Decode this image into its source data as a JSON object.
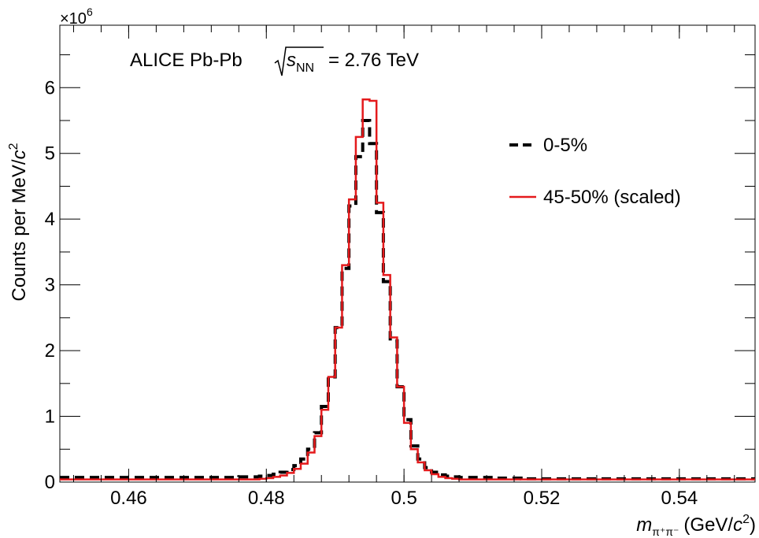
{
  "chart_data": {
    "type": "histogram-step",
    "title": "",
    "annotation": {
      "prefix": "ALICE Pb-Pb",
      "sqrt_var": "s",
      "sqrt_sub": "NN",
      "suffix": "= 2.76 TeV"
    },
    "xlabel": {
      "var": "m",
      "sub": "π⁺π⁻",
      "unit_prefix": "(GeV/",
      "unit_c": "c",
      "unit_exp": "2",
      "unit_suffix": ")"
    },
    "ylabel": {
      "text": "Counts per MeV/",
      "c": "c",
      "exp": "2"
    },
    "y_multiplier": {
      "base": "×10",
      "exp": "6"
    },
    "xlim": [
      0.45,
      0.551
    ],
    "ylim": [
      0,
      6.95
    ],
    "x_ticks": [
      0.46,
      0.48,
      0.5,
      0.52,
      0.54
    ],
    "x_tick_labels": [
      "0.46",
      "0.48",
      "0.5",
      "0.52",
      "0.54"
    ],
    "y_ticks": [
      0,
      1,
      2,
      3,
      4,
      5,
      6
    ],
    "y_tick_labels": [
      "0",
      "1",
      "2",
      "3",
      "4",
      "5",
      "6"
    ],
    "bin_width": 0.001,
    "bin_start": 0.45,
    "series": [
      {
        "name": "0-5%",
        "style": "dashed",
        "color": "#000000",
        "values": [
          0.07,
          0.07,
          0.07,
          0.07,
          0.07,
          0.07,
          0.07,
          0.07,
          0.07,
          0.07,
          0.07,
          0.07,
          0.07,
          0.07,
          0.07,
          0.07,
          0.07,
          0.07,
          0.07,
          0.07,
          0.07,
          0.07,
          0.07,
          0.07,
          0.07,
          0.07,
          0.08,
          0.08,
          0.08,
          0.09,
          0.1,
          0.12,
          0.15,
          0.19,
          0.25,
          0.35,
          0.5,
          0.75,
          1.15,
          1.6,
          2.35,
          3.25,
          4.2,
          4.95,
          5.5,
          5.15,
          4.1,
          3.05,
          2.15,
          1.45,
          0.95,
          0.55,
          0.35,
          0.22,
          0.15,
          0.11,
          0.09,
          0.08,
          0.07,
          0.07,
          0.07,
          0.07,
          0.07,
          0.06,
          0.06,
          0.06,
          0.06,
          0.05,
          0.05,
          0.05,
          0.05,
          0.05,
          0.05,
          0.05,
          0.05,
          0.05,
          0.05,
          0.05,
          0.05,
          0.05,
          0.05,
          0.05,
          0.05,
          0.05,
          0.05,
          0.05,
          0.05,
          0.05,
          0.05,
          0.05,
          0.05,
          0.05,
          0.05,
          0.05,
          0.05,
          0.05,
          0.05,
          0.05,
          0.05,
          0.05,
          0.05
        ]
      },
      {
        "name": "45-50% (scaled)",
        "style": "solid",
        "color": "#e41a1c",
        "values": [
          0.04,
          0.04,
          0.04,
          0.04,
          0.04,
          0.04,
          0.04,
          0.04,
          0.04,
          0.04,
          0.04,
          0.04,
          0.04,
          0.04,
          0.04,
          0.04,
          0.04,
          0.04,
          0.04,
          0.04,
          0.04,
          0.04,
          0.04,
          0.04,
          0.04,
          0.04,
          0.04,
          0.04,
          0.04,
          0.05,
          0.06,
          0.08,
          0.1,
          0.14,
          0.2,
          0.28,
          0.45,
          0.7,
          1.1,
          1.6,
          2.35,
          3.3,
          4.3,
          5.25,
          5.82,
          5.8,
          4.25,
          3.15,
          2.2,
          1.45,
          0.9,
          0.5,
          0.3,
          0.18,
          0.12,
          0.08,
          0.06,
          0.05,
          0.04,
          0.04,
          0.04,
          0.04,
          0.04,
          0.04,
          0.04,
          0.04,
          0.04,
          0.04,
          0.04,
          0.04,
          0.04,
          0.04,
          0.04,
          0.04,
          0.04,
          0.04,
          0.04,
          0.04,
          0.04,
          0.04,
          0.04,
          0.04,
          0.04,
          0.04,
          0.04,
          0.04,
          0.04,
          0.04,
          0.04,
          0.04,
          0.04,
          0.04,
          0.04,
          0.04,
          0.04,
          0.04,
          0.04,
          0.04,
          0.04,
          0.04,
          0.04
        ]
      }
    ],
    "legend": {
      "placement": "right"
    }
  }
}
